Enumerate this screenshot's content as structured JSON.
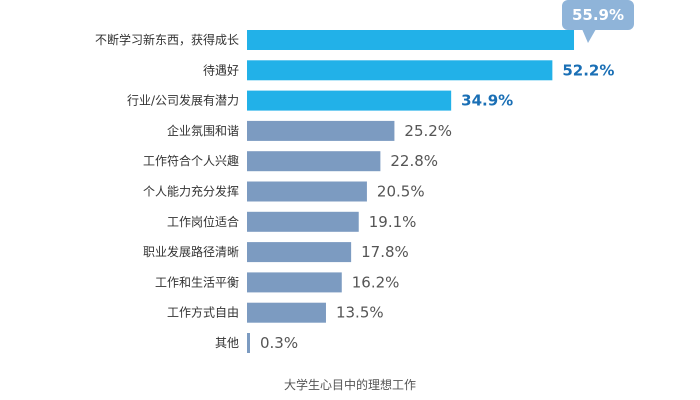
{
  "chart_data": {
    "type": "bar",
    "orientation": "horizontal",
    "categories": [
      "不断学习新东西，获得成长",
      "待遇好",
      "行业/公司发展有潜力",
      "企业氛围和谐",
      "工作符合个人兴趣",
      "个人能力充分发挥",
      "工作岗位适合",
      "职业发展路径清晰",
      "工作和生活平衡",
      "工作方式自由",
      "其他"
    ],
    "values": [
      55.9,
      52.2,
      34.9,
      25.2,
      22.8,
      20.5,
      19.1,
      17.8,
      16.2,
      13.5,
      0.3
    ],
    "value_labels": [
      "55.9%",
      "52.2%",
      "34.9%",
      "25.2%",
      "22.8%",
      "20.5%",
      "19.1%",
      "17.8%",
      "16.2%",
      "13.5%",
      "0.3%"
    ],
    "highlight_count": 3,
    "caption": "大学生心目中的理想工作",
    "colors": {
      "highlight": "#22b1e8",
      "normal": "#7c9bc1",
      "highlight_label": "#1a6fb5",
      "normal_label": "#555555",
      "callout": "#8fb4d9"
    }
  }
}
